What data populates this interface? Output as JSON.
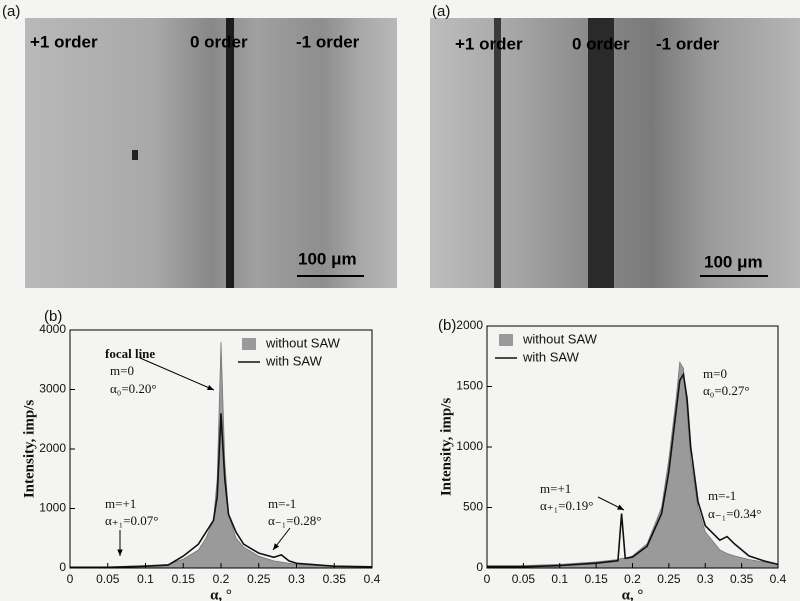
{
  "figures": [
    {
      "label": "(a)",
      "orders": [
        "+1 order",
        "0 order",
        "-1 order"
      ],
      "scale_bar": "100 μm"
    },
    {
      "label": "(a)",
      "orders": [
        "+1 order",
        "0 order",
        "-1 order"
      ],
      "scale_bar": "100 μm"
    }
  ],
  "chart_data": [
    {
      "type": "line",
      "panel_label": "(b)",
      "x_label": "α, °",
      "y_label": "Intensity, imp/s",
      "x": [
        0,
        0.05,
        0.1,
        0.13,
        0.15,
        0.17,
        0.18,
        0.19,
        0.195,
        0.2,
        0.205,
        0.21,
        0.22,
        0.23,
        0.25,
        0.27,
        0.28,
        0.29,
        0.3,
        0.33,
        0.35,
        0.4
      ],
      "series": [
        {
          "name": "without SAW",
          "style": "area",
          "color": "#9a9a9a",
          "values": [
            20,
            20,
            40,
            60,
            150,
            300,
            500,
            800,
            1500,
            3800,
            1800,
            900,
            500,
            350,
            200,
            120,
            100,
            80,
            60,
            40,
            30,
            20
          ]
        },
        {
          "name": "with SAW",
          "style": "line",
          "color": "#111111",
          "values": [
            10,
            10,
            30,
            50,
            200,
            400,
            600,
            800,
            1200,
            2600,
            1500,
            900,
            600,
            400,
            250,
            180,
            220,
            120,
            80,
            50,
            30,
            20
          ]
        }
      ],
      "xlim": [
        0,
        0.4
      ],
      "xticks": [
        0,
        0.05,
        0.1,
        0.15,
        0.2,
        0.25,
        0.3,
        0.35,
        0.4
      ],
      "ylim": [
        0,
        4000
      ],
      "yticks": [
        0,
        1000,
        2000,
        3000,
        4000
      ],
      "legend": "upper right",
      "annotations": [
        "focal line",
        "m=0",
        "α₀=0.20°",
        "m=+1",
        "α₊₁=0.07°",
        "m=-1",
        "α₋₁=0.28°"
      ]
    },
    {
      "type": "line",
      "panel_label": "(b)",
      "x_label": "α, °",
      "y_label": "Intensity, imp/s",
      "x": [
        0,
        0.05,
        0.1,
        0.15,
        0.18,
        0.185,
        0.19,
        0.2,
        0.22,
        0.24,
        0.25,
        0.26,
        0.265,
        0.27,
        0.275,
        0.28,
        0.29,
        0.3,
        0.32,
        0.33,
        0.34,
        0.36,
        0.38,
        0.4
      ],
      "series": [
        {
          "name": "without SAW",
          "style": "area",
          "color": "#9a9a9a",
          "values": [
            20,
            20,
            30,
            50,
            70,
            80,
            80,
            100,
            200,
            500,
            900,
            1400,
            1700,
            1650,
            1300,
            900,
            500,
            300,
            150,
            120,
            100,
            70,
            50,
            30
          ]
        },
        {
          "name": "with SAW",
          "style": "line",
          "color": "#111111",
          "values": [
            10,
            10,
            20,
            40,
            60,
            450,
            80,
            90,
            180,
            450,
            800,
            1300,
            1550,
            1600,
            1400,
            1000,
            550,
            350,
            230,
            260,
            200,
            100,
            60,
            30
          ]
        }
      ],
      "xlim": [
        0,
        0.4
      ],
      "xticks": [
        0,
        0.05,
        0.1,
        0.15,
        0.2,
        0.25,
        0.3,
        0.35,
        0.4
      ],
      "ylim": [
        0,
        2000
      ],
      "yticks": [
        0,
        500,
        1000,
        1500,
        2000
      ],
      "legend": "upper left",
      "annotations": [
        "m=0",
        "α₀=0.27°",
        "m=+1",
        "α₊₁=0.19°",
        "m=-1",
        "α₋₁=0.34°"
      ]
    }
  ]
}
